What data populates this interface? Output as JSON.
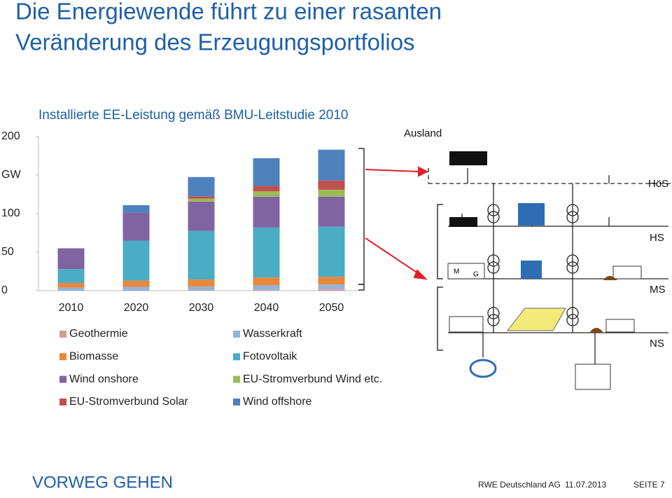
{
  "slide": {
    "title_lines": [
      "Die Energiewende führt zu einer rasanten",
      "Veränderung des Erzeugungsportfolios"
    ],
    "footer": {
      "logo": "VORWEG GEHEN",
      "company": "RWE Deutschland AG",
      "date": "11.07.2013",
      "page": "SEITE 7"
    }
  },
  "diagram": {
    "labels": {
      "abroad": "Ausland",
      "hoes": "HöS",
      "hs": "HS",
      "ms": "MS",
      "ns": "NS"
    },
    "motor": "M",
    "generator": "G"
  },
  "chart_data": {
    "type": "stacked_bar",
    "title": "Installierte EE-Leistung gemäß BMU-Leitstudie 2010",
    "categories": [
      "2010",
      "2020",
      "2030",
      "2040",
      "2050"
    ],
    "ylim": [
      0,
      200
    ],
    "yticks": [
      0,
      50,
      100,
      {
        "value": 150,
        "label": "GW"
      },
      200
    ],
    "series": [
      {
        "name": "Geothermie",
        "color": "#d4999a",
        "values": [
          0,
          0,
          0.5,
          1,
          2
        ]
      },
      {
        "name": "Wasserkraft",
        "color": "#95b3d7",
        "values": [
          4,
          5,
          5,
          6,
          6
        ]
      },
      {
        "name": "Biomasse",
        "color": "#e8883a",
        "values": [
          6,
          8,
          9,
          10,
          10
        ]
      },
      {
        "name": "Fotovoltaik",
        "color": "#4bacc6",
        "values": [
          18,
          52,
          63,
          65,
          65
        ]
      },
      {
        "name": "Wind onshore",
        "color": "#8064a2",
        "values": [
          27,
          36,
          38,
          40,
          39
        ]
      },
      {
        "name": "EU-Stromverbund Wind etc.",
        "color": "#9bbb59",
        "values": [
          0,
          0,
          4,
          7,
          9
        ]
      },
      {
        "name": "EU-Stromverbund Solar",
        "color": "#c0504d",
        "values": [
          0,
          0,
          3,
          7,
          12
        ]
      },
      {
        "name": "Wind offshore",
        "color": "#4f81bd",
        "values": [
          0,
          10,
          25,
          36,
          40
        ]
      }
    ]
  }
}
